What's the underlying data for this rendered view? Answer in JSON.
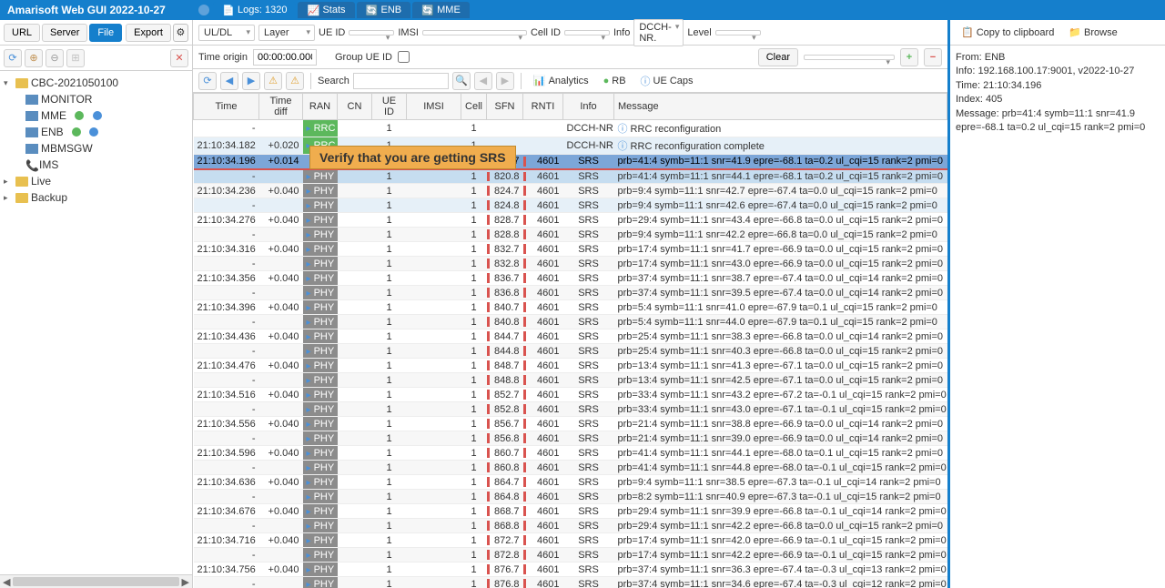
{
  "title": "Amarisoft Web GUI 2022-10-27",
  "tabs": [
    {
      "label": "Logs: 1320",
      "ico": "file"
    },
    {
      "label": "Stats",
      "ico": "chart"
    },
    {
      "label": "ENB",
      "ico": "loop"
    },
    {
      "label": "MME",
      "ico": "loop"
    }
  ],
  "leftbtns": {
    "url": "URL",
    "server": "Server",
    "file": "File",
    "export": "Export"
  },
  "tree": {
    "root": "CBC-2021050100",
    "n1": "MONITOR",
    "n2": "MME",
    "n3": "ENB",
    "n4": "MBMSGW",
    "n5": "IMS",
    "live": "Live",
    "backup": "Backup"
  },
  "filters": {
    "uldl": "UL/DL",
    "layer": "Layer",
    "ueid": "UE ID",
    "imsi": "IMSI",
    "cellid": "Cell ID",
    "info": "Info",
    "info_val": "DCCH-NR.",
    "level": "Level"
  },
  "orig": {
    "label": "Time origin",
    "val": "00:00:00.000",
    "group": "Group UE ID"
  },
  "tb3": {
    "search": "Search",
    "analytics": "Analytics",
    "rb": "RB",
    "uecaps": "UE Caps",
    "clear": "Clear"
  },
  "cols": {
    "time": "Time",
    "diff": "Time diff",
    "ran": "RAN",
    "cn": "CN",
    "ueid": "UE ID",
    "imsi": "IMSI",
    "cell": "Cell",
    "sfn": "SFN",
    "rnti": "RNTI",
    "info": "Info",
    "msg": "Message"
  },
  "rows": [
    {
      "time": "-",
      "diff": "",
      "layer": "RRC",
      "layerCls": "rrc",
      "ueid": "1",
      "cell": "1",
      "sfn": "",
      "rnti": "",
      "info": "DCCH-NR",
      "msg": "RRC reconfiguration",
      "msgico": "i",
      "cls": ""
    },
    {
      "time": "21:10:34.182",
      "diff": "+0.020",
      "layer": "RRC",
      "layerCls": "rrc",
      "ueid": "1",
      "cell": "1",
      "sfn": "",
      "rnti": "",
      "info": "DCCH-NR",
      "msg": "RRC reconfiguration complete",
      "msgico": "i",
      "cls": "hover"
    },
    {
      "time": "21:10:34.196",
      "diff": "+0.014",
      "layer": "",
      "layerCls": "",
      "ueid": "",
      "cell": "",
      "sfn": "820.7",
      "rnti": "4601",
      "info": "SRS",
      "msg": "prb=41:4 symb=11:1 snr=41.9 epre=-68.1 ta=0.2 ul_cqi=15 rank=2 pmi=0",
      "cls": "sel-dark red-underline"
    },
    {
      "time": "-",
      "diff": "",
      "layer": "PHY",
      "layerCls": "phy",
      "ueid": "1",
      "cell": "1",
      "sfn": "820.8",
      "rnti": "4601",
      "info": "SRS",
      "msg": "prb=41:4 symb=11:1 snr=44.1 epre=-68.1 ta=0.2 ul_cqi=15 rank=2 pmi=0",
      "cls": "sel"
    },
    {
      "time": "21:10:34.236",
      "diff": "+0.040",
      "layer": "PHY",
      "layerCls": "phy",
      "ueid": "1",
      "cell": "1",
      "sfn": "824.7",
      "rnti": "4601",
      "info": "SRS",
      "msg": "prb=9:4 symb=11:1 snr=42.7 epre=-67.4 ta=0.0 ul_cqi=15 rank=2 pmi=0",
      "cls": "alt"
    },
    {
      "time": "-",
      "diff": "",
      "layer": "PHY",
      "layerCls": "phy",
      "ueid": "1",
      "cell": "1",
      "sfn": "824.8",
      "rnti": "4601",
      "info": "SRS",
      "msg": "prb=9:4 symb=11:1 snr=42.6 epre=-67.4 ta=0.0 ul_cqi=15 rank=2 pmi=0",
      "cls": "hover"
    },
    {
      "time": "21:10:34.276",
      "diff": "+0.040",
      "layer": "PHY",
      "layerCls": "phy",
      "ueid": "1",
      "cell": "1",
      "sfn": "828.7",
      "rnti": "4601",
      "info": "SRS",
      "msg": "prb=29:4 symb=11:1 snr=43.4 epre=-66.8 ta=0.0 ul_cqi=15 rank=2 pmi=0",
      "cls": ""
    },
    {
      "time": "-",
      "diff": "",
      "layer": "PHY",
      "layerCls": "phy",
      "ueid": "1",
      "cell": "1",
      "sfn": "828.8",
      "rnti": "4601",
      "info": "SRS",
      "msg": "prb=9:4 symb=11:1 snr=42.2 epre=-66.8 ta=0.0 ul_cqi=15 rank=2 pmi=0",
      "cls": "alt"
    },
    {
      "time": "21:10:34.316",
      "diff": "+0.040",
      "layer": "PHY",
      "layerCls": "phy",
      "ueid": "1",
      "cell": "1",
      "sfn": "832.7",
      "rnti": "4601",
      "info": "SRS",
      "msg": "prb=17:4 symb=11:1 snr=41.7 epre=-66.9 ta=0.0 ul_cqi=15 rank=2 pmi=0",
      "cls": ""
    },
    {
      "time": "-",
      "diff": "",
      "layer": "PHY",
      "layerCls": "phy",
      "ueid": "1",
      "cell": "1",
      "sfn": "832.8",
      "rnti": "4601",
      "info": "SRS",
      "msg": "prb=17:4 symb=11:1 snr=43.0 epre=-66.9 ta=0.0 ul_cqi=15 rank=2 pmi=0",
      "cls": "alt"
    },
    {
      "time": "21:10:34.356",
      "diff": "+0.040",
      "layer": "PHY",
      "layerCls": "phy",
      "ueid": "1",
      "cell": "1",
      "sfn": "836.7",
      "rnti": "4601",
      "info": "SRS",
      "msg": "prb=37:4 symb=11:1 snr=38.7 epre=-67.4 ta=0.0 ul_cqi=14 rank=2 pmi=0",
      "cls": ""
    },
    {
      "time": "-",
      "diff": "",
      "layer": "PHY",
      "layerCls": "phy",
      "ueid": "1",
      "cell": "1",
      "sfn": "836.8",
      "rnti": "4601",
      "info": "SRS",
      "msg": "prb=37:4 symb=11:1 snr=39.5 epre=-67.4 ta=0.0 ul_cqi=14 rank=2 pmi=0",
      "cls": "alt"
    },
    {
      "time": "21:10:34.396",
      "diff": "+0.040",
      "layer": "PHY",
      "layerCls": "phy",
      "ueid": "1",
      "cell": "1",
      "sfn": "840.7",
      "rnti": "4601",
      "info": "SRS",
      "msg": "prb=5:4 symb=11:1 snr=41.0 epre=-67.9 ta=0.1 ul_cqi=15 rank=2 pmi=0",
      "cls": ""
    },
    {
      "time": "-",
      "diff": "",
      "layer": "PHY",
      "layerCls": "phy",
      "ueid": "1",
      "cell": "1",
      "sfn": "840.8",
      "rnti": "4601",
      "info": "SRS",
      "msg": "prb=5:4 symb=11:1 snr=44.0 epre=-67.9 ta=0.1 ul_cqi=15 rank=2 pmi=0",
      "cls": "alt"
    },
    {
      "time": "21:10:34.436",
      "diff": "+0.040",
      "layer": "PHY",
      "layerCls": "phy",
      "ueid": "1",
      "cell": "1",
      "sfn": "844.7",
      "rnti": "4601",
      "info": "SRS",
      "msg": "prb=25:4 symb=11:1 snr=38.3 epre=-66.8 ta=0.0 ul_cqi=14 rank=2 pmi=0",
      "cls": ""
    },
    {
      "time": "-",
      "diff": "",
      "layer": "PHY",
      "layerCls": "phy",
      "ueid": "1",
      "cell": "1",
      "sfn": "844.8",
      "rnti": "4601",
      "info": "SRS",
      "msg": "prb=25:4 symb=11:1 snr=40.3 epre=-66.8 ta=0.0 ul_cqi=15 rank=2 pmi=0",
      "cls": "alt"
    },
    {
      "time": "21:10:34.476",
      "diff": "+0.040",
      "layer": "PHY",
      "layerCls": "phy",
      "ueid": "1",
      "cell": "1",
      "sfn": "848.7",
      "rnti": "4601",
      "info": "SRS",
      "msg": "prb=13:4 symb=11:1 snr=41.3 epre=-67.1 ta=0.0 ul_cqi=15 rank=2 pmi=0",
      "cls": ""
    },
    {
      "time": "-",
      "diff": "",
      "layer": "PHY",
      "layerCls": "phy",
      "ueid": "1",
      "cell": "1",
      "sfn": "848.8",
      "rnti": "4601",
      "info": "SRS",
      "msg": "prb=13:4 symb=11:1 snr=42.5 epre=-67.1 ta=0.0 ul_cqi=15 rank=2 pmi=0",
      "cls": "alt"
    },
    {
      "time": "21:10:34.516",
      "diff": "+0.040",
      "layer": "PHY",
      "layerCls": "phy",
      "ueid": "1",
      "cell": "1",
      "sfn": "852.7",
      "rnti": "4601",
      "info": "SRS",
      "msg": "prb=33:4 symb=11:1 snr=43.2 epre=-67.2 ta=-0.1 ul_cqi=15 rank=2 pmi=0",
      "cls": ""
    },
    {
      "time": "-",
      "diff": "",
      "layer": "PHY",
      "layerCls": "phy",
      "ueid": "1",
      "cell": "1",
      "sfn": "852.8",
      "rnti": "4601",
      "info": "SRS",
      "msg": "prb=33:4 symb=11:1 snr=43.0 epre=-67.1 ta=-0.1 ul_cqi=15 rank=2 pmi=0",
      "cls": "alt"
    },
    {
      "time": "21:10:34.556",
      "diff": "+0.040",
      "layer": "PHY",
      "layerCls": "phy",
      "ueid": "1",
      "cell": "1",
      "sfn": "856.7",
      "rnti": "4601",
      "info": "SRS",
      "msg": "prb=21:4 symb=11:1 snr=38.8 epre=-66.9 ta=0.0 ul_cqi=14 rank=2 pmi=0",
      "cls": ""
    },
    {
      "time": "-",
      "diff": "",
      "layer": "PHY",
      "layerCls": "phy",
      "ueid": "1",
      "cell": "1",
      "sfn": "856.8",
      "rnti": "4601",
      "info": "SRS",
      "msg": "prb=21:4 symb=11:1 snr=39.0 epre=-66.9 ta=0.0 ul_cqi=14 rank=2 pmi=0",
      "cls": "alt"
    },
    {
      "time": "21:10:34.596",
      "diff": "+0.040",
      "layer": "PHY",
      "layerCls": "phy",
      "ueid": "1",
      "cell": "1",
      "sfn": "860.7",
      "rnti": "4601",
      "info": "SRS",
      "msg": "prb=41:4 symb=11:1 snr=44.1 epre=-68.0 ta=0.1 ul_cqi=15 rank=2 pmi=0",
      "cls": ""
    },
    {
      "time": "-",
      "diff": "",
      "layer": "PHY",
      "layerCls": "phy",
      "ueid": "1",
      "cell": "1",
      "sfn": "860.8",
      "rnti": "4601",
      "info": "SRS",
      "msg": "prb=41:4 symb=11:1 snr=44.8 epre=-68.0 ta=-0.1 ul_cqi=15 rank=2 pmi=0",
      "cls": "alt"
    },
    {
      "time": "21:10:34.636",
      "diff": "+0.040",
      "layer": "PHY",
      "layerCls": "phy",
      "ueid": "1",
      "cell": "1",
      "sfn": "864.7",
      "rnti": "4601",
      "info": "SRS",
      "msg": "prb=9:4 symb=11:1 snr=38.5 epre=-67.3 ta=-0.1 ul_cqi=14 rank=2 pmi=0",
      "cls": ""
    },
    {
      "time": "-",
      "diff": "",
      "layer": "PHY",
      "layerCls": "phy",
      "ueid": "1",
      "cell": "1",
      "sfn": "864.8",
      "rnti": "4601",
      "info": "SRS",
      "msg": "prb=8:2 symb=11:1 snr=40.9 epre=-67.3 ta=-0.1 ul_cqi=15 rank=2 pmi=0",
      "cls": "alt"
    },
    {
      "time": "21:10:34.676",
      "diff": "+0.040",
      "layer": "PHY",
      "layerCls": "phy",
      "ueid": "1",
      "cell": "1",
      "sfn": "868.7",
      "rnti": "4601",
      "info": "SRS",
      "msg": "prb=29:4 symb=11:1 snr=39.9 epre=-66.8 ta=-0.1 ul_cqi=14 rank=2 pmi=0",
      "cls": ""
    },
    {
      "time": "-",
      "diff": "",
      "layer": "PHY",
      "layerCls": "phy",
      "ueid": "1",
      "cell": "1",
      "sfn": "868.8",
      "rnti": "4601",
      "info": "SRS",
      "msg": "prb=29:4 symb=11:1 snr=42.2 epre=-66.8 ta=0.0 ul_cqi=15 rank=2 pmi=0",
      "cls": "alt"
    },
    {
      "time": "21:10:34.716",
      "diff": "+0.040",
      "layer": "PHY",
      "layerCls": "phy",
      "ueid": "1",
      "cell": "1",
      "sfn": "872.7",
      "rnti": "4601",
      "info": "SRS",
      "msg": "prb=17:4 symb=11:1 snr=42.0 epre=-66.9 ta=-0.1 ul_cqi=15 rank=2 pmi=0",
      "cls": ""
    },
    {
      "time": "-",
      "diff": "",
      "layer": "PHY",
      "layerCls": "phy",
      "ueid": "1",
      "cell": "1",
      "sfn": "872.8",
      "rnti": "4601",
      "info": "SRS",
      "msg": "prb=17:4 symb=11:1 snr=42.2 epre=-66.9 ta=-0.1 ul_cqi=15 rank=2 pmi=0",
      "cls": "alt"
    },
    {
      "time": "21:10:34.756",
      "diff": "+0.040",
      "layer": "PHY",
      "layerCls": "phy",
      "ueid": "1",
      "cell": "1",
      "sfn": "876.7",
      "rnti": "4601",
      "info": "SRS",
      "msg": "prb=37:4 symb=11:1 snr=36.3 epre=-67.4 ta=-0.3 ul_cqi=13 rank=2 pmi=0",
      "cls": ""
    },
    {
      "time": "-",
      "diff": "",
      "layer": "PHY",
      "layerCls": "phy",
      "ueid": "1",
      "cell": "1",
      "sfn": "876.8",
      "rnti": "4601",
      "info": "SRS",
      "msg": "prb=37:4 symb=11:1 snr=34.6 epre=-67.4 ta=-0.3 ul_cqi=12 rank=2 pmi=0",
      "cls": "alt"
    }
  ],
  "callout": "Verify that you are getting SRS",
  "right": {
    "copy": "Copy to clipboard",
    "browse": "Browse",
    "l1": "From: ENB",
    "l2": "Info: 192.168.100.17:9001, v2022-10-27",
    "l3": "Time: 21:10:34.196",
    "l4": "Index: 405",
    "l5": "Message: prb=41:4 symb=11:1 snr=41.9 epre=-68.1 ta=0.2 ul_cqi=15 rank=2 pmi=0"
  }
}
